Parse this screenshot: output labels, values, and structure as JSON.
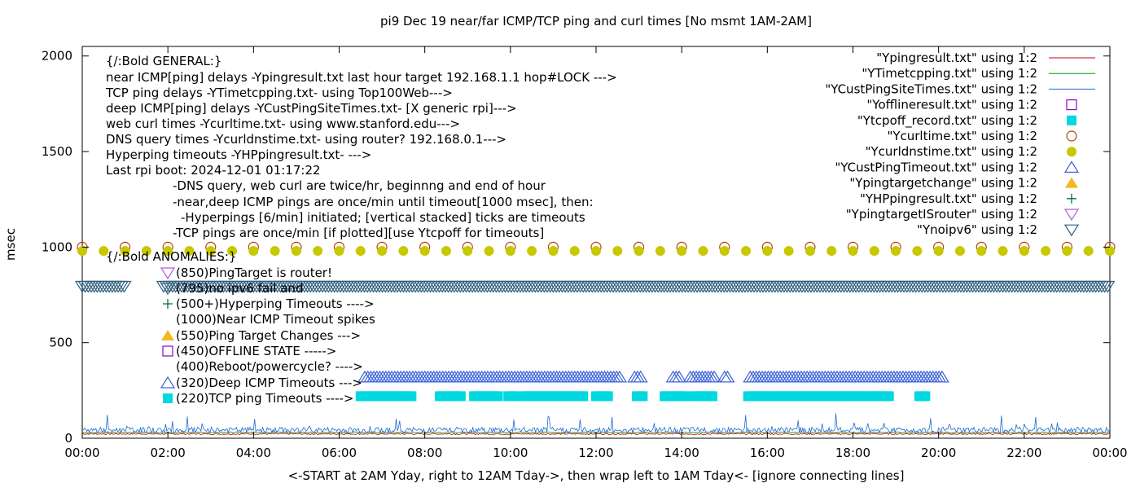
{
  "chart_data": {
    "type": "line",
    "title": "pi9 Dec 19  near/far ICMP/TCP ping and curl times [No msmt 1AM-2AM]",
    "xlabel": "<-START at 2AM Yday, right to 12AM Tday->, then wrap left to 1AM Tday<- [ignore connecting lines]",
    "ylabel": "msec",
    "xlim": [
      0,
      24
    ],
    "ylim": [
      0,
      2050
    ],
    "x_ticks": [
      "00:00",
      "02:00",
      "04:00",
      "06:00",
      "08:00",
      "10:00",
      "12:00",
      "14:00",
      "16:00",
      "18:00",
      "20:00",
      "22:00",
      "00:00"
    ],
    "y_ticks": [
      "0",
      "500",
      "1000",
      "1500",
      "2000"
    ],
    "y_tick_values": [
      0,
      500,
      1000,
      1500,
      2000
    ],
    "legend_position": "top-right",
    "legend": [
      {
        "label": "\"Ypingresult.txt\" using 1:2",
        "marker": "line",
        "color": "#cc0000"
      },
      {
        "label": "\"YTimetcpping.txt\" using 1:2",
        "marker": "line",
        "color": "#009900"
      },
      {
        "label": "\"YCustPingSiteTimes.txt\" using 1:2",
        "marker": "line",
        "color": "#1e6ad6"
      },
      {
        "label": "\"Yofflineresult.txt\" using 1:2",
        "marker": "open-square",
        "color": "#9400d3"
      },
      {
        "label": "\"Ytcpoff_record.txt\" using 1:2",
        "marker": "filled-square",
        "color": "#00d8e0"
      },
      {
        "label": "\"Ycurltime.txt\" using 1:2",
        "marker": "open-circle",
        "color": "#b8400e"
      },
      {
        "label": "\"Ycurldnstime.txt\" using 1:2",
        "marker": "filled-circle",
        "color": "#c8c800"
      },
      {
        "label": "\"YCustPingTimeout.txt\" using 1:2",
        "marker": "open-triangle-up",
        "color": "#3c63d8"
      },
      {
        "label": "\"Ypingtargetchange\" using 1:2",
        "marker": "filled-triangle-up",
        "color": "#f5b820"
      },
      {
        "label": "\"YHPpingresult.txt\" using 1:2",
        "marker": "plus",
        "color": "#006e4a"
      },
      {
        "label": "\"YpingtargetISrouter\" using 1:2",
        "marker": "open-triangle-down",
        "color": "#b25ce0"
      },
      {
        "label": "\"Ynoipv6\" using 1:2",
        "marker": "open-triangle-down",
        "color": "#2f5f7f"
      }
    ],
    "annotations": [
      "{/:Bold GENERAL:}",
      "near ICMP[ping] delays -Ypingresult.txt last hour target 192.168.1.1 hop#LOCK --->",
      "TCP ping delays -YTimetcpping.txt- using Top100Web--->",
      "deep ICMP[ping] delays -YCustPingSiteTimes.txt- [X generic rpi]--->",
      "web curl times -Ycurltime.txt- using www.stanford.edu--->",
      "DNS query times -Ycurldnstime.txt- using router? 192.168.0.1--->",
      "Hyperping timeouts -YHPpingresult.txt- --->",
      "Last rpi boot: 2024-12-01 01:17:22",
      "-DNS query, web curl are twice/hr, beginnng and end of hour",
      "-near,deep ICMP pings are once/min until timeout[1000 msec], then:",
      "-Hyperpings [6/min] initiated; [vertical stacked] ticks are timeouts",
      "-TCP pings are once/min [if plotted][use Ytcpoff for timeouts]",
      "{/:Bold ANOMALIES:}",
      "(850)PingTarget is router!",
      "(795)no ipv6 fail and",
      "(500+)Hyperping Timeouts ---->",
      "(1000)Near ICMP Timeout spikes",
      "(550)Ping Target Changes --->",
      "(450)OFFLINE STATE ----->",
      "(400)Reboot/powercycle? ---->",
      "(320)Deep ICMP Timeouts --->",
      "(220)TCP ping Timeouts ---->"
    ],
    "series": [
      {
        "name": "\"Ypingresult.txt\" using 1:2",
        "style": "line",
        "baseline_y": 22,
        "noise_y": 8
      },
      {
        "name": "\"YTimetcpping.txt\" using 1:2",
        "style": "line",
        "baseline_y": 30,
        "noise_y": 6
      },
      {
        "name": "\"YCustPingSiteTimes.txt\" using 1:2",
        "style": "line",
        "baseline_y": 40,
        "noise_y": 30
      },
      {
        "name": "\"Ycurltime.txt\" using 1:2",
        "style": "points",
        "y": 1000,
        "x_start": 0,
        "x_end": 24,
        "step_hours": 1
      },
      {
        "name": "\"Ycurldnstime.txt\" using 1:2",
        "style": "points",
        "y": 980,
        "x_start": 0,
        "x_end": 24,
        "step_hours": 0.5
      },
      {
        "name": "\"Ynoipv6\" using 1:2",
        "style": "band",
        "y": 795,
        "ranges": [
          [
            0,
            1.0
          ],
          [
            1.9,
            24
          ]
        ]
      },
      {
        "name": "\"YCustPingTimeout.txt\" using 1:2",
        "style": "band",
        "y": 320,
        "ranges": [
          [
            6.6,
            12.6
          ],
          [
            12.9,
            13.1
          ],
          [
            13.8,
            14.0
          ],
          [
            14.2,
            14.8
          ],
          [
            15.0,
            15.1
          ],
          [
            15.6,
            20.1
          ]
        ]
      },
      {
        "name": "\"Ytcpoff_record.txt\" using 1:2",
        "style": "band",
        "y": 220,
        "ranges": [
          [
            6.5,
            7.7
          ],
          [
            8.35,
            8.85
          ],
          [
            9.15,
            9.75
          ],
          [
            9.95,
            10.1
          ],
          [
            10.3,
            11.75
          ],
          [
            12.0,
            12.3
          ],
          [
            12.95,
            13.1
          ],
          [
            13.6,
            14.1
          ],
          [
            14.3,
            14.75
          ],
          [
            15.55,
            18.9
          ],
          [
            19.55,
            19.75
          ]
        ]
      }
    ]
  }
}
